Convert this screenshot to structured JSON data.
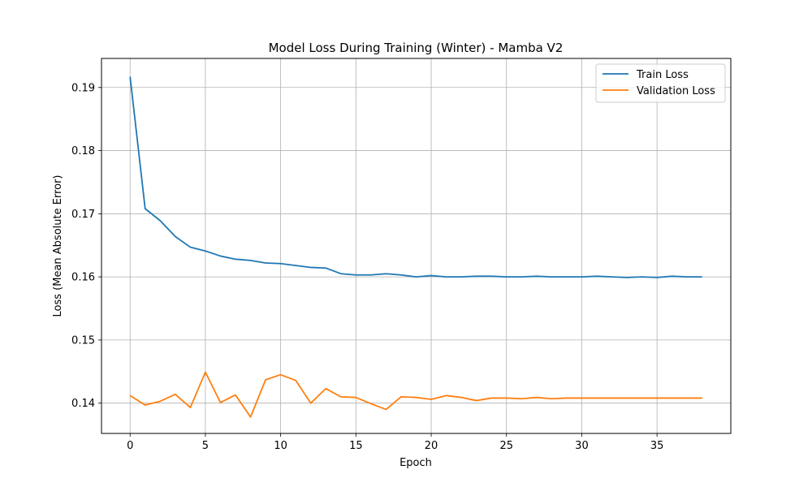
{
  "chart_data": {
    "type": "line",
    "title": "Model Loss During Training (Winter) - Mamba V2",
    "xlabel": "Epoch",
    "ylabel": "Loss (Mean Absolute Error)",
    "xlim": [
      -1.9,
      39.9
    ],
    "ylim": [
      0.1352,
      0.1946
    ],
    "xticks": [
      0,
      5,
      10,
      15,
      20,
      25,
      30,
      35
    ],
    "yticks": [
      0.14,
      0.15,
      0.16,
      0.17,
      0.18,
      0.19
    ],
    "ytick_labels": [
      "0.14",
      "0.15",
      "0.16",
      "0.17",
      "0.18",
      "0.19"
    ],
    "grid": true,
    "legend_position": "top-right",
    "x": [
      0,
      1,
      2,
      3,
      4,
      5,
      6,
      7,
      8,
      9,
      10,
      11,
      12,
      13,
      14,
      15,
      16,
      17,
      18,
      19,
      20,
      21,
      22,
      23,
      24,
      25,
      26,
      27,
      28,
      29,
      30,
      31,
      32,
      33,
      34,
      35,
      36,
      37,
      38
    ],
    "series": [
      {
        "name": "Train Loss",
        "color": "#1f77b4",
        "values": [
          0.1917,
          0.1708,
          0.1689,
          0.1664,
          0.1647,
          0.1641,
          0.1633,
          0.1628,
          0.1626,
          0.1622,
          0.1621,
          0.1618,
          0.1615,
          0.1614,
          0.1605,
          0.1603,
          0.1603,
          0.1605,
          0.1603,
          0.16,
          0.1602,
          0.16,
          0.16,
          0.1601,
          0.1601,
          0.16,
          0.16,
          0.1601,
          0.16,
          0.16,
          0.16,
          0.1601,
          0.16,
          0.1599,
          0.16,
          0.1599,
          0.1601,
          0.16,
          0.16
        ]
      },
      {
        "name": "Validation Loss",
        "color": "#ff7f0e",
        "values": [
          0.1412,
          0.1397,
          0.1403,
          0.1414,
          0.1393,
          0.1449,
          0.1401,
          0.1413,
          0.1378,
          0.1437,
          0.1445,
          0.1436,
          0.14,
          0.1423,
          0.141,
          0.1409,
          0.1399,
          0.139,
          0.141,
          0.1409,
          0.1406,
          0.1412,
          0.1409,
          0.1404,
          0.1408,
          0.1408,
          0.1407,
          0.1409,
          0.1407,
          0.1408,
          0.1408,
          0.1408,
          0.1408,
          0.1408,
          0.1408,
          0.1408,
          0.1408,
          0.1408,
          0.1408
        ]
      }
    ]
  }
}
